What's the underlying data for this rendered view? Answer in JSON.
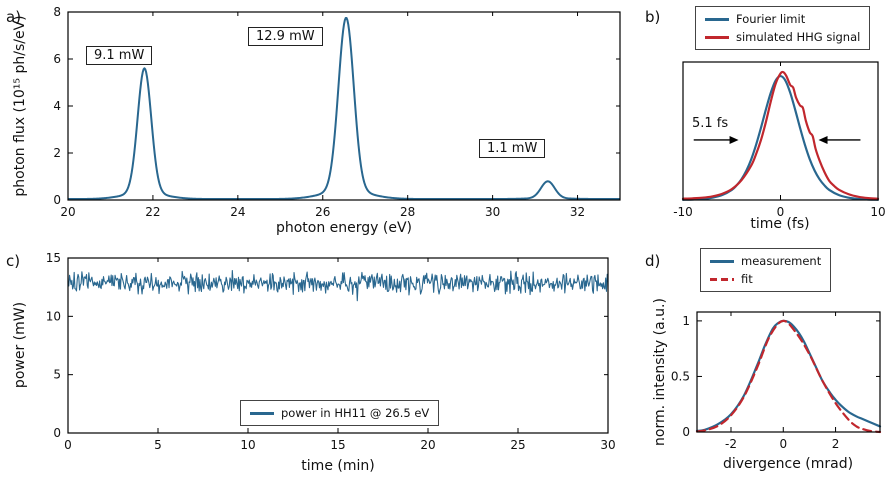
{
  "chart_data": [
    {
      "panel": "a)",
      "type": "line",
      "xlabel": "photon energy (eV)",
      "ylabel": "photon flux (10¹⁵ ph/s/eV)",
      "xlim": [
        20,
        33
      ],
      "ylim": [
        0,
        8
      ],
      "xticks": [
        20,
        22,
        24,
        26,
        28,
        30,
        32
      ],
      "yticks": [
        0,
        2,
        4,
        6,
        8
      ],
      "color": "#29678f",
      "baseline": 0.04,
      "peaks": [
        {
          "center_eV": 21.8,
          "height": 5.3,
          "sigma_eV": 0.16,
          "power_label": "9.1 mW"
        },
        {
          "center_eV": 26.55,
          "height": 7.35,
          "sigma_eV": 0.18,
          "power_label": "12.9 mW"
        },
        {
          "center_eV": 31.3,
          "height": 0.72,
          "sigma_eV": 0.16,
          "power_label": "1.1 mW"
        }
      ]
    },
    {
      "panel": "b)",
      "type": "line",
      "xlabel": "time (fs)",
      "xlim": [
        -10,
        10
      ],
      "ylim": [
        0,
        1.08
      ],
      "xticks": [
        -10,
        0,
        10
      ],
      "yticks": [],
      "annotation": {
        "text": "5.1 fs",
        "arrows": [
          {
            "from": -8.9,
            "to": -4.3,
            "y": 0.47
          },
          {
            "from": 8.2,
            "to": 3.9,
            "y": 0.47
          }
        ]
      },
      "series": [
        {
          "name": "Fourier limit",
          "color": "#29678f",
          "style": "solid",
          "x": [
            -10,
            -9,
            -8,
            -7,
            -6,
            -5,
            -4.5,
            -4,
            -3.5,
            -3,
            -2.5,
            -2,
            -1.5,
            -1,
            -0.5,
            0,
            0.5,
            1,
            1.5,
            2,
            2.5,
            3,
            3.5,
            4,
            4.5,
            5,
            6,
            7,
            8,
            9,
            10
          ],
          "y": [
            0.002,
            0.004,
            0.008,
            0.018,
            0.038,
            0.079,
            0.115,
            0.163,
            0.23,
            0.319,
            0.433,
            0.566,
            0.708,
            0.839,
            0.935,
            0.97,
            0.935,
            0.839,
            0.708,
            0.566,
            0.433,
            0.319,
            0.23,
            0.163,
            0.115,
            0.079,
            0.038,
            0.018,
            0.008,
            0.004,
            0.002
          ]
        },
        {
          "name": "simulated HHG signal",
          "color": "#c1272d",
          "style": "solid",
          "x": [
            -10,
            -9,
            -8,
            -7,
            -6,
            -5,
            -4,
            -3,
            -2.5,
            -2,
            -1.5,
            -1,
            -0.5,
            0,
            0.3,
            0.6,
            1,
            1.3,
            1.6,
            2,
            2.3,
            2.6,
            3,
            3.3,
            3.6,
            4,
            4.5,
            5,
            5.5,
            6,
            7,
            8,
            9,
            10
          ],
          "y": [
            0.01,
            0.013,
            0.018,
            0.028,
            0.048,
            0.085,
            0.155,
            0.27,
            0.36,
            0.47,
            0.61,
            0.77,
            0.91,
            0.99,
            1.0,
            0.97,
            0.9,
            0.88,
            0.8,
            0.74,
            0.72,
            0.62,
            0.53,
            0.5,
            0.4,
            0.31,
            0.22,
            0.15,
            0.11,
            0.08,
            0.045,
            0.025,
            0.015,
            0.01
          ]
        }
      ]
    },
    {
      "panel": "c)",
      "type": "line",
      "xlabel": "time (min)",
      "ylabel": "power (mW)",
      "xlim": [
        0,
        30
      ],
      "ylim": [
        0,
        15
      ],
      "xticks": [
        0,
        5,
        10,
        15,
        20,
        25,
        30
      ],
      "yticks": [
        0,
        5,
        10,
        15
      ],
      "legend_label": "power in HH11 @ 26.5 eV",
      "signal": {
        "mean_mW": 12.9,
        "fluctuation_mW": 1.05,
        "n_points": 700,
        "color": "#29678f"
      }
    },
    {
      "panel": "d)",
      "type": "line",
      "xlabel": "divergence (mrad)",
      "ylabel": "norm. intensity (a.u.)",
      "xlim": [
        -3.3,
        3.7
      ],
      "ylim": [
        0,
        1.08
      ],
      "xticks": [
        -2,
        0,
        2
      ],
      "yticks": [
        0,
        0.5,
        1
      ],
      "series": [
        {
          "name": "measurement",
          "color": "#29678f",
          "style": "solid",
          "x": [
            -3.3,
            -3,
            -2.5,
            -2,
            -1.5,
            -1,
            -0.7,
            -0.4,
            -0.2,
            0,
            0.2,
            0.4,
            0.6,
            0.8,
            1,
            1.2,
            1.5,
            1.8,
            2,
            2.2,
            2.5,
            2.8,
            3,
            3.3,
            3.7
          ],
          "y": [
            0.01,
            0.02,
            0.07,
            0.16,
            0.33,
            0.6,
            0.78,
            0.93,
            0.98,
            1.0,
            0.99,
            0.95,
            0.89,
            0.81,
            0.71,
            0.61,
            0.46,
            0.35,
            0.29,
            0.24,
            0.18,
            0.14,
            0.12,
            0.09,
            0.05
          ]
        },
        {
          "name": "fit",
          "color": "#c1272d",
          "style": "dashed",
          "x": [
            -3.3,
            -3,
            -2.5,
            -2,
            -1.5,
            -1,
            -0.5,
            0,
            0.5,
            1,
            1.5,
            2,
            2.5,
            2.8,
            3,
            3.3,
            3.7
          ],
          "y": [
            0.005,
            0.015,
            0.055,
            0.15,
            0.32,
            0.58,
            0.87,
            1.0,
            0.89,
            0.7,
            0.46,
            0.26,
            0.11,
            0.05,
            0.03,
            0.01,
            0.0
          ]
        }
      ]
    }
  ]
}
